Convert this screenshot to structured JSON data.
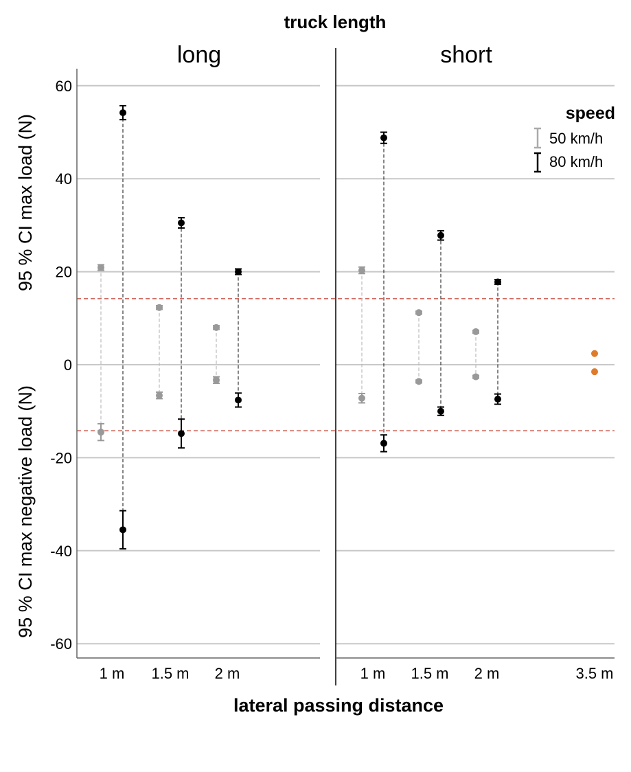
{
  "chart_data": {
    "type": "scatter",
    "title": "truck length",
    "xlabel": "lateral passing distance",
    "ylabel_top": "95 % CI max load (N)",
    "ylabel_bottom": "95 % CI max negative load (N)",
    "ylim": [
      -63,
      63
    ],
    "yticks": [
      60,
      40,
      20,
      0,
      -20,
      -40,
      -60
    ],
    "grid": true,
    "reference_lines": [
      14.2,
      -14.2
    ],
    "legend": {
      "title": "speed",
      "position": "top-right",
      "entries": [
        {
          "label": "50 km/h",
          "color": "#aaaaaa"
        },
        {
          "label": "80 km/h",
          "color": "#000000"
        }
      ]
    },
    "panels": [
      {
        "title": "long",
        "categories": [
          "1 m",
          "1.5 m",
          "2 m"
        ],
        "series": [
          {
            "name": "50 km/h",
            "color": "#999999",
            "points": [
              {
                "x": "1 m",
                "max": 20.9,
                "max_ci": [
                  20.3,
                  21.5
                ],
                "neg": -14.5,
                "neg_ci": [
                  -16.3,
                  -12.7
                ]
              },
              {
                "x": "1.5 m",
                "max": 12.3,
                "max_ci": [
                  11.9,
                  12.7
                ],
                "neg": -6.6,
                "neg_ci": [
                  -7.3,
                  -5.9
                ]
              },
              {
                "x": "2 m",
                "max": 8.0,
                "max_ci": [
                  7.6,
                  8.4
                ],
                "neg": -3.3,
                "neg_ci": [
                  -4.0,
                  -2.6
                ]
              }
            ]
          },
          {
            "name": "80 km/h",
            "color": "#000000",
            "points": [
              {
                "x": "1 m",
                "max": 54.2,
                "max_ci": [
                  52.7,
                  55.7
                ],
                "neg": -35.5,
                "neg_ci": [
                  -39.6,
                  -31.4
                ]
              },
              {
                "x": "1.5 m",
                "max": 30.5,
                "max_ci": [
                  29.4,
                  31.6
                ],
                "neg": -14.8,
                "neg_ci": [
                  -17.9,
                  -11.7
                ]
              },
              {
                "x": "2 m",
                "max": 20.0,
                "max_ci": [
                  19.4,
                  20.6
                ],
                "neg": -7.6,
                "neg_ci": [
                  -9.1,
                  -6.1
                ]
              }
            ]
          }
        ]
      },
      {
        "title": "short",
        "categories": [
          "1 m",
          "1.5 m",
          "2 m",
          "3.5 m"
        ],
        "series": [
          {
            "name": "50 km/h",
            "color": "#999999",
            "points": [
              {
                "x": "1 m",
                "max": 20.3,
                "max_ci": [
                  19.6,
                  21.0
                ],
                "neg": -7.2,
                "neg_ci": [
                  -8.2,
                  -6.2
                ]
              },
              {
                "x": "1.5 m",
                "max": 11.2,
                "max_ci": [
                  10.9,
                  11.5
                ],
                "neg": -3.6,
                "neg_ci": [
                  -3.9,
                  -3.3
                ]
              },
              {
                "x": "2 m",
                "max": 7.1,
                "max_ci": [
                  6.8,
                  7.4
                ],
                "neg": -2.6,
                "neg_ci": [
                  -2.9,
                  -2.3
                ]
              }
            ]
          },
          {
            "name": "80 km/h",
            "color": "#000000",
            "points": [
              {
                "x": "1 m",
                "max": 48.8,
                "max_ci": [
                  47.6,
                  50.0
                ],
                "neg": -16.9,
                "neg_ci": [
                  -18.7,
                  -15.1
                ]
              },
              {
                "x": "1.5 m",
                "max": 27.8,
                "max_ci": [
                  26.8,
                  28.8
                ],
                "neg": -10.0,
                "neg_ci": [
                  -10.9,
                  -9.1
                ]
              },
              {
                "x": "2 m",
                "max": 17.8,
                "max_ci": [
                  17.3,
                  18.3
                ],
                "neg": -7.4,
                "neg_ci": [
                  -8.5,
                  -6.3
                ]
              }
            ]
          },
          {
            "name": "",
            "color": "#e07b2a",
            "points": [
              {
                "x": "3.5 m",
                "max": 2.4,
                "neg": -1.5
              }
            ]
          }
        ]
      }
    ]
  }
}
